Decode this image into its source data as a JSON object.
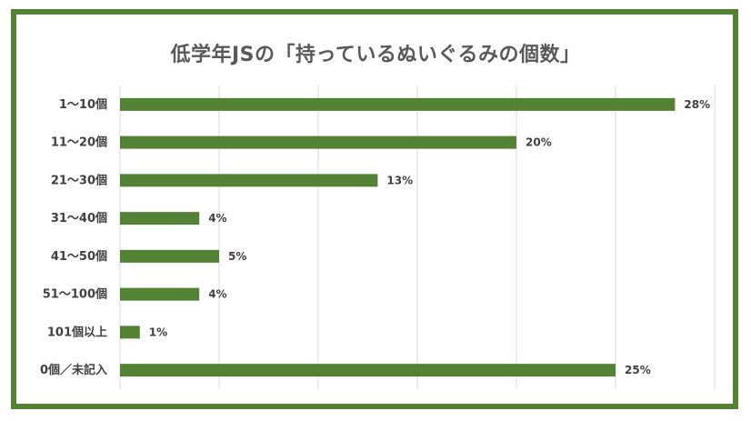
{
  "chart_data": {
    "type": "bar",
    "orientation": "horizontal",
    "title": "低学年JSの「持っているぬいぐるみの個数」",
    "categories": [
      "1～10個",
      "11～20個",
      "21～30個",
      "31～40個",
      "41～50個",
      "51～100個",
      "101個以上",
      "0個／未記入"
    ],
    "values": [
      28,
      20,
      13,
      4,
      5,
      4,
      1,
      25
    ],
    "value_labels": [
      "28%",
      "20%",
      "13%",
      "4%",
      "5%",
      "4%",
      "1%",
      "25%"
    ],
    "unit": "%",
    "xlim": [
      0,
      30
    ],
    "grid": true,
    "legend": "none",
    "bar_color": "#548235",
    "frame_color": "#548235"
  }
}
